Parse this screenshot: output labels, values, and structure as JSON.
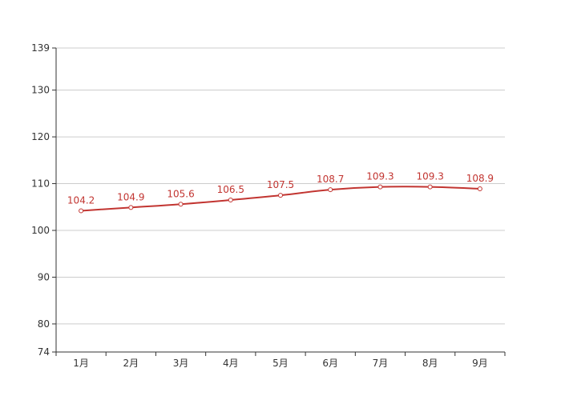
{
  "chart_data": {
    "type": "line",
    "categories": [
      "1月",
      "2月",
      "3月",
      "4月",
      "5月",
      "6月",
      "7月",
      "8月",
      "9月"
    ],
    "series": [
      {
        "values": [
          104.2,
          104.9,
          105.6,
          106.5,
          107.5,
          108.7,
          109.3,
          109.3,
          108.9
        ]
      }
    ],
    "ylim": [
      74,
      139
    ],
    "yticks": [
      74,
      80,
      90,
      100,
      110,
      120,
      130,
      139
    ],
    "grid": true,
    "data_labels": true,
    "line_color": "#c23531",
    "title": "",
    "xlabel": "",
    "ylabel": ""
  }
}
